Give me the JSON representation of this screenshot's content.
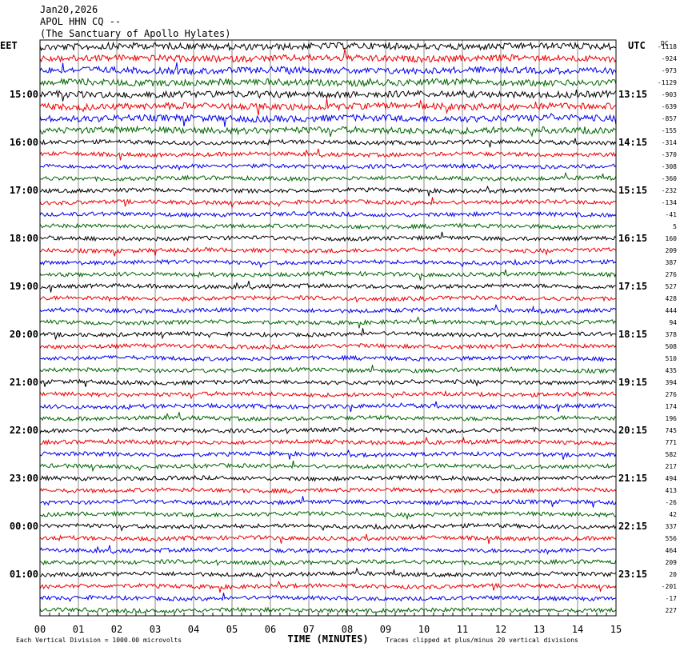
{
  "header": {
    "date": "Jan20,2026",
    "station": "APOL HHN CQ --",
    "site": "(The Sanctuary of Apollo Hylates)"
  },
  "left_label": "EET",
  "right_label": "UTC",
  "dc_label": "DC",
  "left_times": [
    "15:00",
    "16:00",
    "17:00",
    "18:00",
    "19:00",
    "20:00",
    "21:00",
    "22:00",
    "23:00",
    "00:00",
    "01:00"
  ],
  "right_times": [
    "13:15",
    "14:15",
    "15:15",
    "16:15",
    "17:15",
    "18:15",
    "19:15",
    "20:15",
    "21:15",
    "22:15",
    "23:15"
  ],
  "dc_values": [
    -1118,
    -924,
    -973,
    -1129,
    -903,
    -639,
    -857,
    -155,
    -314,
    -370,
    -308,
    -360,
    -232,
    -134,
    -41,
    5,
    160,
    209,
    387,
    276,
    527,
    428,
    444,
    94,
    378,
    508,
    510,
    435,
    394,
    276,
    174,
    196,
    745,
    771,
    582,
    217,
    494,
    413,
    -26,
    42,
    337,
    556,
    464,
    209,
    20,
    -201,
    -17,
    227
  ],
  "x_ticks": [
    "00",
    "01",
    "02",
    "03",
    "04",
    "05",
    "06",
    "07",
    "08",
    "09",
    "10",
    "11",
    "12",
    "13",
    "14",
    "15"
  ],
  "x_axis_label": "TIME (MINUTES)",
  "footer_left": "Each Vertical Division = 1000.00 microvolts",
  "footer_right": "Traces clipped at plus/minus 20 vertical divisions"
}
